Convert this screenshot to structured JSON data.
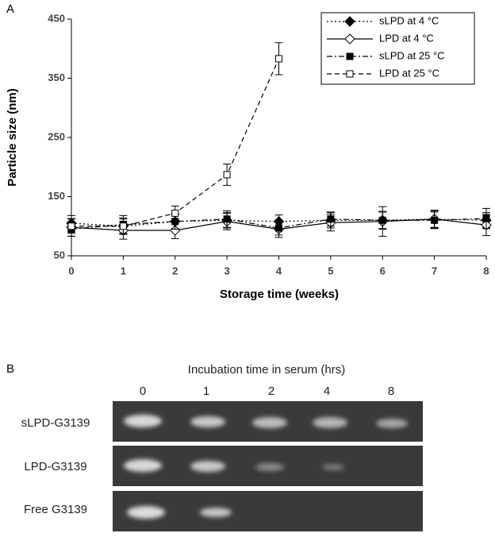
{
  "chart_data": {
    "type": "line",
    "panel_label": "A",
    "xlabel": "Storage time (weeks)",
    "ylabel": "Particle size (nm)",
    "x": [
      0,
      1,
      2,
      3,
      4,
      5,
      6,
      7,
      8
    ],
    "xlim": [
      0,
      8
    ],
    "xticks": [
      0,
      1,
      2,
      3,
      4,
      5,
      6,
      7,
      8
    ],
    "ylim": [
      50,
      450
    ],
    "yticks": [
      50,
      150,
      250,
      350,
      450
    ],
    "grid": false,
    "legend": "upper right",
    "series": [
      {
        "name": "sLPD at 4 °C",
        "color": "#000000",
        "linestyle": "dotted",
        "marker": "diamond",
        "filled": true,
        "values": [
          105,
          100,
          108,
          110,
          108,
          110,
          110,
          112,
          110
        ],
        "errors": [
          13,
          14,
          12,
          13,
          11,
          13,
          14,
          14,
          13
        ]
      },
      {
        "name": "LPD at 4 °C",
        "color": "#000000",
        "linestyle": "solid",
        "marker": "diamond",
        "filled": false,
        "values": [
          98,
          93,
          93,
          108,
          95,
          106,
          108,
          112,
          102
        ],
        "errors": [
          15,
          15,
          14,
          14,
          14,
          14,
          25,
          15,
          18
        ]
      },
      {
        "name": "sLPD at 25 °C",
        "color": "#000000",
        "linestyle": "dashdot",
        "marker": "square",
        "filled": true,
        "values": [
          95,
          103,
          108,
          112,
          97,
          112,
          110,
          110,
          113
        ],
        "errors": [
          12,
          15,
          13,
          14,
          12,
          12,
          15,
          14,
          17
        ]
      },
      {
        "name": "LPD at 25 °C",
        "color": "#000000",
        "linestyle": "dashed",
        "marker": "square",
        "filled": false,
        "values": [
          100,
          100,
          122,
          187,
          383,
          null,
          null,
          null,
          null
        ],
        "errors": [
          12,
          12,
          12,
          18,
          27,
          null,
          null,
          null,
          null
        ]
      }
    ]
  },
  "gel": {
    "panel_label": "B",
    "title": "Incubation time in serum (hrs)",
    "lanes": [
      "0",
      "1",
      "2",
      "4",
      "8"
    ],
    "rows": [
      "sLPD-G3139",
      "LPD-G3139",
      "Free G3139"
    ]
  }
}
